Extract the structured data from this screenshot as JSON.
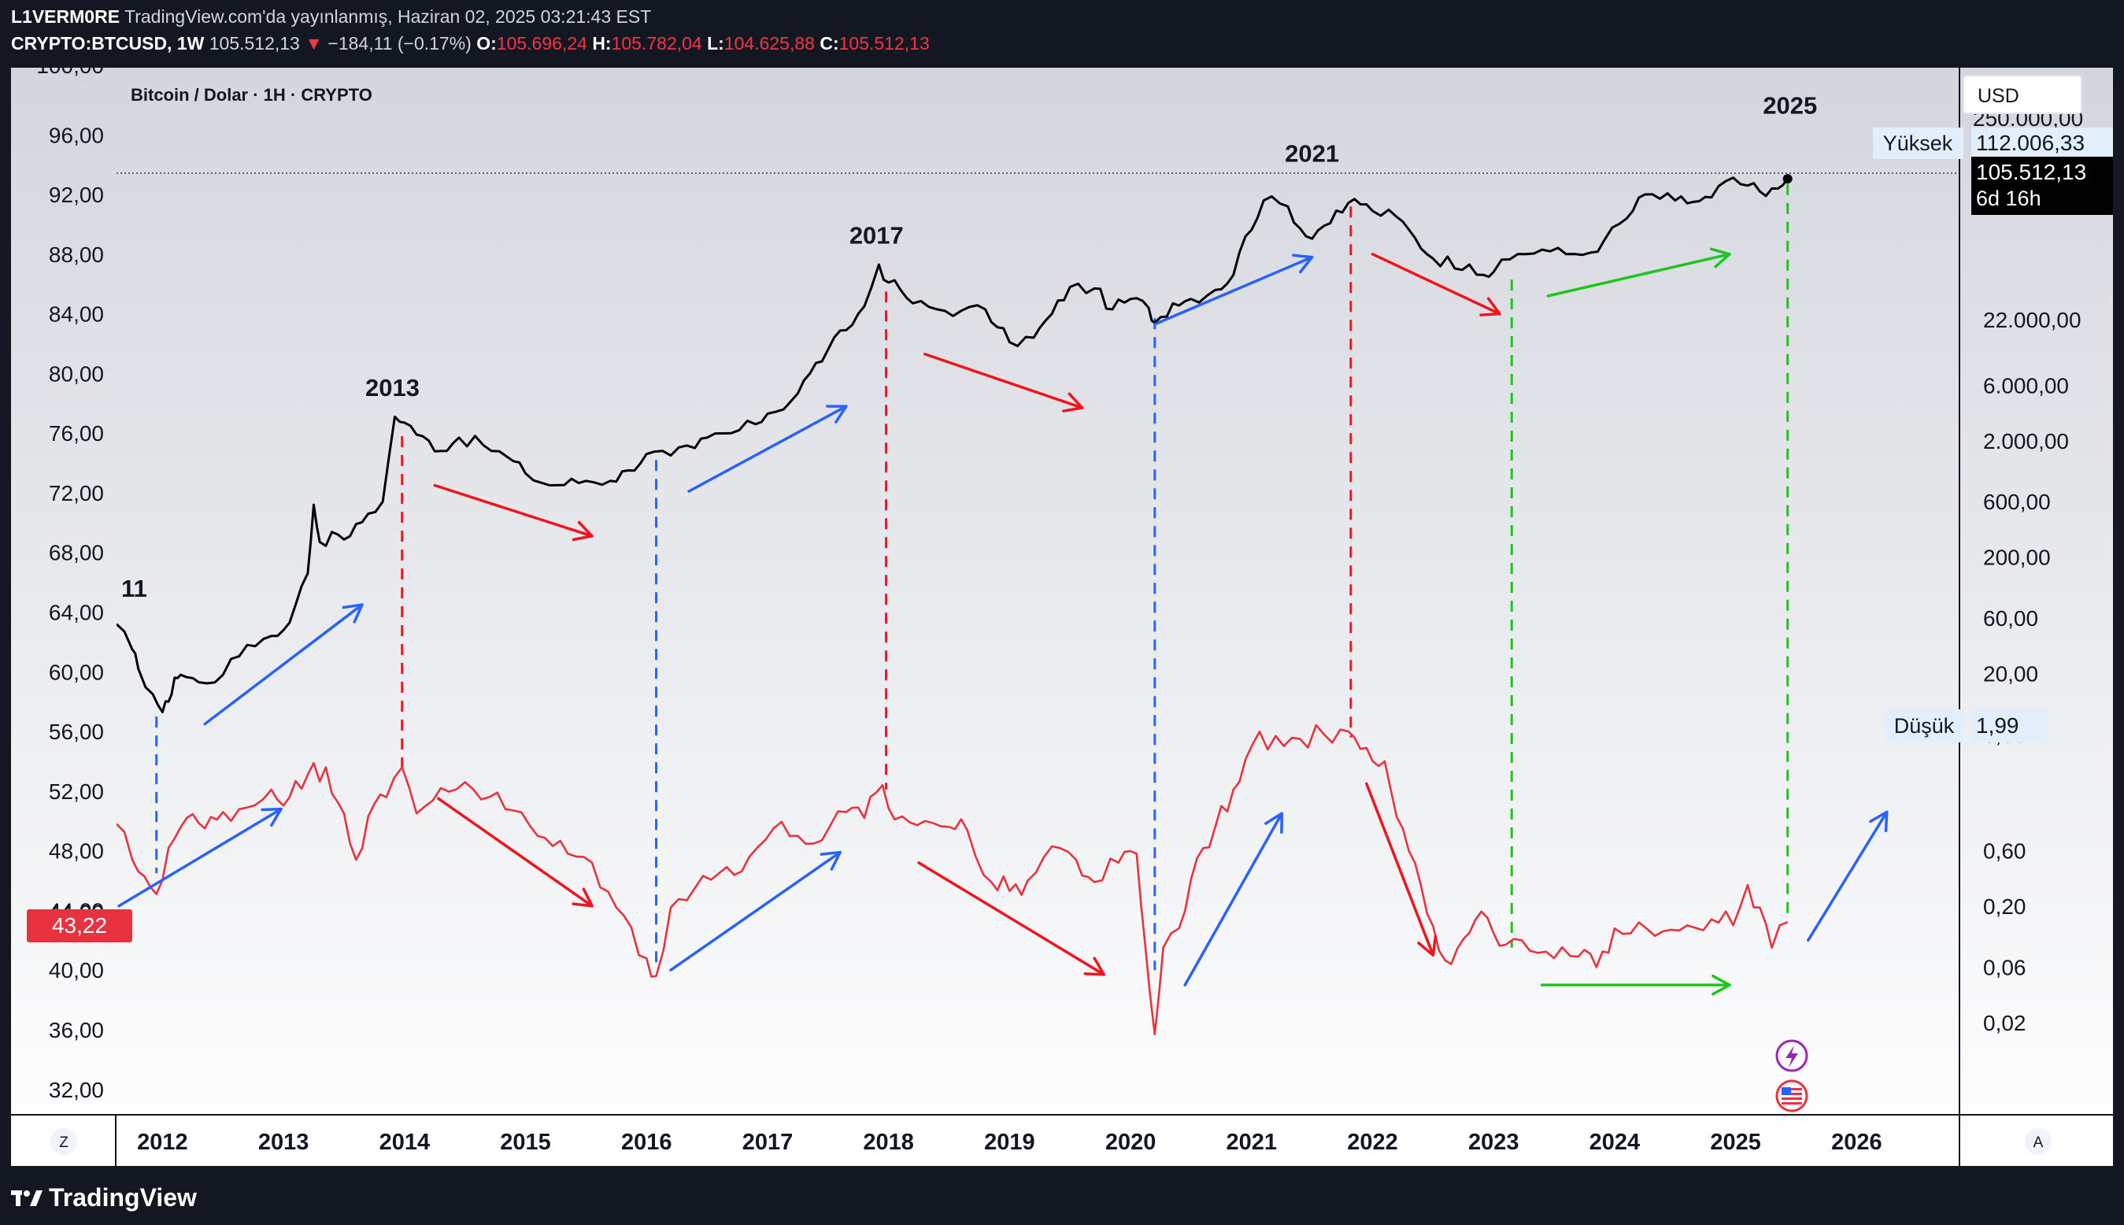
{
  "header": {
    "author": "L1VERM0RE",
    "published": "TradingView.com'da yayınlanmış, Haziran 02, 2025 03:21:43 EST",
    "symbol": "CRYPTO:BTCUSD, 1W",
    "last_price": "105.512,13",
    "change": "−184,11 (−0.17%)",
    "open_label": "O:",
    "open": "105.696,24",
    "high_label": "H:",
    "high": "105.782,04",
    "low_label": "L:",
    "low": "104.625,88",
    "close_label": "C:",
    "close": "105.512,13",
    "colors": {
      "down": "#f23645",
      "text": "#d1d4dc"
    }
  },
  "pane": {
    "series_title": "Bitcoin / Dolar · 1H · CRYPTO",
    "currency_button": "USD",
    "high_marker_label": "Yüksek",
    "high_marker_value": "112.006,33",
    "low_marker_label": "Düşük",
    "low_marker_value": "1,99",
    "price_tag_value": "105.512,13",
    "price_tag_countdown": "6d 16h",
    "rsi_tag_value": "43,22",
    "partial_top_right": "250.000,00",
    "partial_top_left": "100,00",
    "partial_44": "44,00",
    "cut_year_label": "11",
    "bottom_left_button": "Z",
    "bottom_right_button": "A",
    "colors": {
      "background_top": "#d3d6dd",
      "background_bottom": "#ffffff",
      "price_line": "#000000",
      "rsi_line": "#e8323f",
      "arrow_blue": "#2962ff",
      "arrow_red": "#f0141e",
      "arrow_green": "#1fc51f"
    }
  },
  "footer": {
    "logo_text": "TradingView",
    "logo_icon": "tradingview-logo-icon"
  },
  "chart_data": {
    "type": "line",
    "x_axis": {
      "labels": [
        "2012",
        "2013",
        "2014",
        "2015",
        "2016",
        "2017",
        "2018",
        "2019",
        "2020",
        "2021",
        "2022",
        "2023",
        "2024",
        "2025",
        "2026"
      ],
      "range": [
        2011.62,
        2026.85
      ]
    },
    "left_axis": {
      "ticks": [
        "96,00",
        "92,00",
        "88,00",
        "84,00",
        "80,00",
        "76,00",
        "72,00",
        "68,00",
        "64,00",
        "60,00",
        "56,00",
        "52,00",
        "48,00",
        "44,00",
        "40,00",
        "36,00",
        "32,00"
      ],
      "range": [
        30.3,
        100.5
      ]
    },
    "right_axis": {
      "scale": "log",
      "ticks": [
        "22.000,00",
        "6.000,00",
        "2.000,00",
        "600,00",
        "200,00",
        "60,00",
        "20,00",
        "6,00",
        "0,60",
        "0,20",
        "0,06",
        "0,02"
      ],
      "tick_values": [
        22000,
        6000,
        2000,
        600,
        200,
        60,
        20,
        6,
        0.6,
        0.2,
        0.06,
        0.02
      ]
    },
    "cycle_labels": [
      {
        "text": "2013",
        "x": 2013.9,
        "y": 78.5
      },
      {
        "text": "2017",
        "x": 2017.9,
        "y": 88.7
      },
      {
        "text": "2021",
        "x": 2021.5,
        "y": 94.2
      },
      {
        "text": "2025",
        "x": 2025.45,
        "y": 97.4
      }
    ],
    "series": [
      {
        "name": "BTCUSD",
        "axis": "left",
        "points": [
          [
            2011.62,
            63.2
          ],
          [
            2011.75,
            61.5
          ],
          [
            2011.8,
            60.2
          ],
          [
            2011.92,
            58.5
          ],
          [
            2012.0,
            57.3
          ],
          [
            2012.05,
            58.0
          ],
          [
            2012.1,
            59.6
          ],
          [
            2012.15,
            59.8
          ],
          [
            2012.3,
            59.3
          ],
          [
            2012.5,
            59.8
          ],
          [
            2012.7,
            61.8
          ],
          [
            2012.9,
            62.4
          ],
          [
            2013.0,
            62.8
          ],
          [
            2013.1,
            64.5
          ],
          [
            2013.2,
            66.6
          ],
          [
            2013.25,
            71.2
          ],
          [
            2013.3,
            68.7
          ],
          [
            2013.45,
            69.2
          ],
          [
            2013.55,
            69.1
          ],
          [
            2013.7,
            70.6
          ],
          [
            2013.82,
            71.4
          ],
          [
            2013.92,
            77.1
          ],
          [
            2014.0,
            76.7
          ],
          [
            2014.1,
            75.9
          ],
          [
            2014.2,
            75.5
          ],
          [
            2014.3,
            74.8
          ],
          [
            2014.45,
            75.7
          ],
          [
            2014.65,
            75.2
          ],
          [
            2014.85,
            74.4
          ],
          [
            2015.0,
            73.3
          ],
          [
            2015.2,
            72.5
          ],
          [
            2015.5,
            72.8
          ],
          [
            2015.7,
            72.8
          ],
          [
            2015.85,
            73.5
          ],
          [
            2016.0,
            74.6
          ],
          [
            2016.2,
            74.5
          ],
          [
            2016.4,
            75.0
          ],
          [
            2016.5,
            75.7
          ],
          [
            2016.7,
            76.0
          ],
          [
            2016.9,
            76.6
          ],
          [
            2017.0,
            77.3
          ],
          [
            2017.2,
            78.2
          ],
          [
            2017.35,
            80.0
          ],
          [
            2017.5,
            81.6
          ],
          [
            2017.65,
            82.9
          ],
          [
            2017.8,
            84.5
          ],
          [
            2017.92,
            87.3
          ],
          [
            2018.0,
            86.1
          ],
          [
            2018.1,
            85.6
          ],
          [
            2018.2,
            84.7
          ],
          [
            2018.4,
            84.3
          ],
          [
            2018.6,
            84.2
          ],
          [
            2018.8,
            84.3
          ],
          [
            2018.9,
            83.1
          ],
          [
            2019.0,
            82.1
          ],
          [
            2019.2,
            82.4
          ],
          [
            2019.35,
            84.0
          ],
          [
            2019.5,
            85.8
          ],
          [
            2019.7,
            85.7
          ],
          [
            2019.85,
            84.3
          ],
          [
            2020.0,
            85.0
          ],
          [
            2020.15,
            84.4
          ],
          [
            2020.2,
            83.4
          ],
          [
            2020.35,
            84.7
          ],
          [
            2020.5,
            85.0
          ],
          [
            2020.7,
            85.6
          ],
          [
            2020.85,
            86.6
          ],
          [
            2020.95,
            89.2
          ],
          [
            2021.1,
            91.6
          ],
          [
            2021.3,
            91.2
          ],
          [
            2021.45,
            89.2
          ],
          [
            2021.6,
            89.9
          ],
          [
            2021.75,
            90.8
          ],
          [
            2021.85,
            91.7
          ],
          [
            2022.0,
            90.9
          ],
          [
            2022.2,
            90.5
          ],
          [
            2022.35,
            89.1
          ],
          [
            2022.5,
            87.7
          ],
          [
            2022.8,
            87.3
          ],
          [
            2022.92,
            86.6
          ],
          [
            2023.0,
            86.8
          ],
          [
            2023.2,
            88.0
          ],
          [
            2023.4,
            88.3
          ],
          [
            2023.6,
            88.0
          ],
          [
            2023.8,
            88.1
          ],
          [
            2023.92,
            89.0
          ],
          [
            2024.1,
            90.4
          ],
          [
            2024.25,
            92.0
          ],
          [
            2024.5,
            91.6
          ],
          [
            2024.65,
            91.5
          ],
          [
            2024.8,
            91.8
          ],
          [
            2024.92,
            92.9
          ],
          [
            2025.1,
            92.6
          ],
          [
            2025.25,
            91.9
          ],
          [
            2025.35,
            92.4
          ],
          [
            2025.43,
            93.05
          ]
        ]
      },
      {
        "name": "RSI",
        "axis": "left",
        "points": [
          [
            2011.62,
            49.8
          ],
          [
            2011.75,
            47.4
          ],
          [
            2011.85,
            46.3
          ],
          [
            2011.95,
            45.1
          ],
          [
            2012.05,
            48.2
          ],
          [
            2012.2,
            50.2
          ],
          [
            2012.35,
            49.5
          ],
          [
            2012.5,
            50.6
          ],
          [
            2012.7,
            50.9
          ],
          [
            2012.9,
            52.1
          ],
          [
            2013.05,
            51.6
          ],
          [
            2013.2,
            53.1
          ],
          [
            2013.35,
            53.6
          ],
          [
            2013.5,
            50.5
          ],
          [
            2013.6,
            47.4
          ],
          [
            2013.7,
            50.3
          ],
          [
            2013.85,
            51.6
          ],
          [
            2013.98,
            53.6
          ],
          [
            2014.1,
            50.5
          ],
          [
            2014.3,
            52.2
          ],
          [
            2014.5,
            52.6
          ],
          [
            2014.7,
            51.6
          ],
          [
            2014.9,
            50.7
          ],
          [
            2015.1,
            49.0
          ],
          [
            2015.35,
            47.8
          ],
          [
            2015.55,
            47.2
          ],
          [
            2015.75,
            44.2
          ],
          [
            2016.0,
            40.8
          ],
          [
            2016.08,
            39.6
          ],
          [
            2016.2,
            44.2
          ],
          [
            2016.4,
            45.5
          ],
          [
            2016.6,
            46.5
          ],
          [
            2016.85,
            47.6
          ],
          [
            2017.05,
            49.5
          ],
          [
            2017.25,
            49.0
          ],
          [
            2017.45,
            48.7
          ],
          [
            2017.65,
            50.6
          ],
          [
            2017.8,
            50.2
          ],
          [
            2017.95,
            52.4
          ],
          [
            2018.05,
            50.1
          ],
          [
            2018.3,
            50.0
          ],
          [
            2018.5,
            49.6
          ],
          [
            2018.65,
            49.4
          ],
          [
            2018.85,
            45.9
          ],
          [
            2019.0,
            45.3
          ],
          [
            2019.15,
            46.0
          ],
          [
            2019.35,
            48.3
          ],
          [
            2019.55,
            47.4
          ],
          [
            2019.7,
            45.9
          ],
          [
            2019.9,
            47.2
          ],
          [
            2020.05,
            47.8
          ],
          [
            2020.12,
            41.8
          ],
          [
            2020.2,
            35.7
          ],
          [
            2020.27,
            41.5
          ],
          [
            2020.4,
            42.8
          ],
          [
            2020.55,
            47.5
          ],
          [
            2020.7,
            49.6
          ],
          [
            2020.85,
            52.1
          ],
          [
            2021.0,
            55.0
          ],
          [
            2021.2,
            55.7
          ],
          [
            2021.4,
            55.5
          ],
          [
            2021.6,
            55.8
          ],
          [
            2021.8,
            56.0
          ],
          [
            2021.95,
            54.9
          ],
          [
            2022.1,
            54.0
          ],
          [
            2022.25,
            49.5
          ],
          [
            2022.35,
            47.2
          ],
          [
            2022.45,
            43.8
          ],
          [
            2022.55,
            41.3
          ],
          [
            2022.65,
            40.4
          ],
          [
            2022.8,
            42.5
          ],
          [
            2022.95,
            43.5
          ],
          [
            2023.1,
            41.7
          ],
          [
            2023.3,
            41.3
          ],
          [
            2023.5,
            40.8
          ],
          [
            2023.7,
            40.9
          ],
          [
            2023.85,
            40.2
          ],
          [
            2024.0,
            42.8
          ],
          [
            2024.2,
            43.2
          ],
          [
            2024.4,
            42.6
          ],
          [
            2024.6,
            43.0
          ],
          [
            2024.8,
            43.4
          ],
          [
            2024.98,
            43.0
          ],
          [
            2025.1,
            45.7
          ],
          [
            2025.2,
            44.2
          ],
          [
            2025.3,
            41.5
          ],
          [
            2025.43,
            43.22
          ]
        ]
      }
    ],
    "annotations": {
      "arrows": [
        {
          "color": "blue",
          "from": [
            2012.35,
            56.5
          ],
          "to": [
            2013.65,
            64.5
          ]
        },
        {
          "color": "red",
          "from": [
            2014.25,
            72.5
          ],
          "to": [
            2015.55,
            69.1
          ]
        },
        {
          "color": "blue",
          "from": [
            2016.35,
            72.1
          ],
          "to": [
            2017.65,
            77.8
          ]
        },
        {
          "color": "red",
          "from": [
            2018.3,
            81.3
          ],
          "to": [
            2019.6,
            77.7
          ]
        },
        {
          "color": "blue",
          "from": [
            2020.2,
            83.3
          ],
          "to": [
            2021.5,
            87.8
          ]
        },
        {
          "color": "red",
          "from": [
            2022.0,
            88.0
          ],
          "to": [
            2023.05,
            84.0
          ]
        },
        {
          "color": "green",
          "from": [
            2023.45,
            85.2
          ],
          "to": [
            2024.95,
            88.0
          ]
        },
        {
          "color": "blue",
          "from": [
            2011.64,
            44.3
          ],
          "to": [
            2012.98,
            50.8
          ]
        },
        {
          "color": "red",
          "from": [
            2014.28,
            51.5
          ],
          "to": [
            2015.55,
            44.3
          ]
        },
        {
          "color": "blue",
          "from": [
            2016.2,
            40.0
          ],
          "to": [
            2017.6,
            47.9
          ]
        },
        {
          "color": "red",
          "from": [
            2018.25,
            47.2
          ],
          "to": [
            2019.78,
            39.7
          ]
        },
        {
          "color": "blue",
          "from": [
            2020.45,
            39.0
          ],
          "to": [
            2021.25,
            50.5
          ]
        },
        {
          "color": "red",
          "from": [
            2021.95,
            52.5
          ],
          "to": [
            2022.5,
            41.0
          ]
        },
        {
          "color": "green",
          "from": [
            2023.4,
            39.0
          ],
          "to": [
            2024.95,
            39.0
          ]
        },
        {
          "color": "blue",
          "from": [
            2025.6,
            42.0
          ],
          "to": [
            2026.25,
            50.6
          ]
        }
      ],
      "vlines": [
        {
          "color": "blue",
          "x": 2011.95,
          "y1": 57.0,
          "y2": 46.5
        },
        {
          "color": "red",
          "x": 2013.98,
          "y1": 75.8,
          "y2": 53.5
        },
        {
          "color": "blue",
          "x": 2016.08,
          "y1": 74.2,
          "y2": 40.3
        },
        {
          "color": "red",
          "x": 2017.98,
          "y1": 85.5,
          "y2": 52.1
        },
        {
          "color": "blue",
          "x": 2020.2,
          "y1": 83.7,
          "y2": 40.0
        },
        {
          "color": "red",
          "x": 2021.82,
          "y1": 91.2,
          "y2": 55.6
        },
        {
          "color": "green",
          "x": 2023.15,
          "y1": 86.3,
          "y2": 41.5
        },
        {
          "color": "green",
          "x": 2025.43,
          "y1": 92.7,
          "y2": 43.5
        }
      ]
    }
  }
}
